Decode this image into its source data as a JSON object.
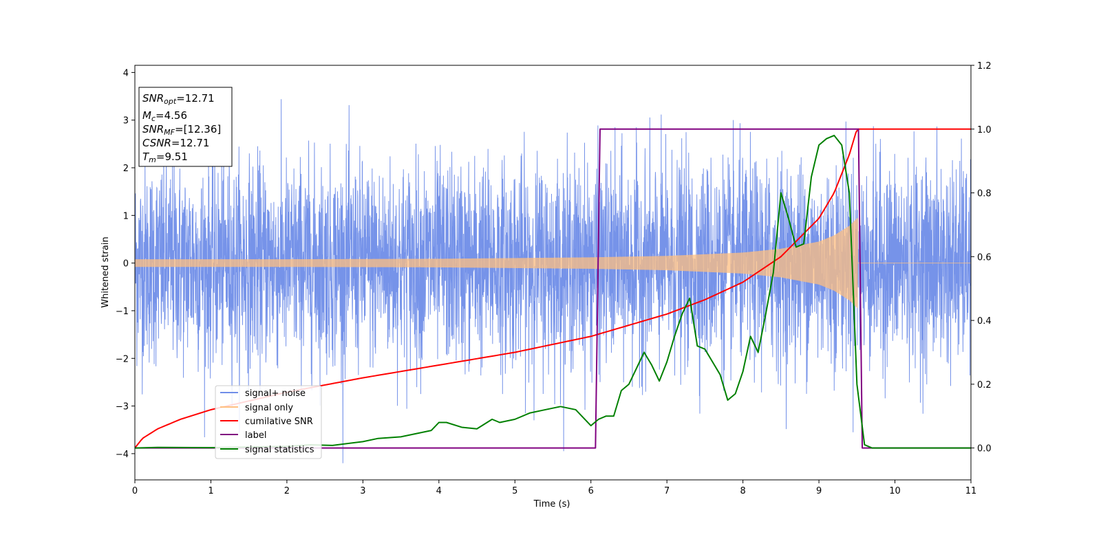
{
  "chart_data": {
    "type": "line",
    "xlabel": "Time (s)",
    "ylabel": "Whitened strain",
    "xlim": [
      0,
      11
    ],
    "ylim_left": [
      -4.55,
      4.15
    ],
    "ylim_right": [
      -0.1,
      1.2
    ],
    "xticks": [
      0,
      1,
      2,
      3,
      4,
      5,
      6,
      7,
      8,
      9,
      10,
      11
    ],
    "yticks_left": [
      -4,
      -3,
      -2,
      -1,
      0,
      1,
      2,
      3,
      4
    ],
    "yticks_right": [
      0.0,
      0.2,
      0.4,
      0.6,
      0.8,
      1.0,
      1.2
    ],
    "grid": false,
    "legend_position": "lower-left",
    "info_box": {
      "snr_opt": {
        "base": "SNR",
        "sub": "opt",
        "value": "=12.71"
      },
      "mc": {
        "base": "M",
        "sub": "c",
        "value": "=4.56"
      },
      "snr_mf": {
        "base": "SNR",
        "sub": "MF",
        "value": "=[12.36]"
      },
      "csnr": {
        "base": "CSNR",
        "value": "=12.71"
      },
      "tm": {
        "base": "T",
        "sub": "m",
        "value": "=9.51"
      }
    },
    "series": [
      {
        "name": "signal+ noise",
        "color": "#6f8de8",
        "axis": "left",
        "noise_std": 1.05,
        "t_start": 0,
        "t_end": 11
      },
      {
        "name": "signal only",
        "color": "#ffbf80",
        "axis": "left",
        "amplitude_envelope": {
          "t": [
            0,
            2,
            4,
            6,
            7,
            8,
            8.5,
            9,
            9.2,
            9.4,
            9.51
          ],
          "amp": [
            0.08,
            0.08,
            0.09,
            0.12,
            0.15,
            0.22,
            0.3,
            0.45,
            0.58,
            0.78,
            0.95
          ]
        },
        "t_end": 9.51
      },
      {
        "name": "cumilative SNR",
        "color": "#ff0000",
        "axis": "right",
        "x": [
          0,
          0.1,
          0.3,
          0.6,
          1,
          2,
          3,
          4,
          5,
          6,
          6.5,
          7,
          7.5,
          8,
          8.5,
          9,
          9.2,
          9.4,
          9.5,
          11
        ],
        "y": [
          0.0,
          0.03,
          0.06,
          0.09,
          0.12,
          0.175,
          0.22,
          0.26,
          0.3,
          0.35,
          0.385,
          0.42,
          0.465,
          0.52,
          0.6,
          0.72,
          0.8,
          0.92,
          1.0,
          1.0
        ]
      },
      {
        "name": "label",
        "color": "#800080",
        "axis": "right",
        "x": [
          0,
          6.06,
          6.12,
          9.52,
          9.57,
          11
        ],
        "y": [
          0,
          0,
          1,
          1,
          0,
          0
        ]
      },
      {
        "name": "signal statistics",
        "color": "#008000",
        "axis": "right",
        "x": [
          0,
          0.3,
          1,
          2,
          2.3,
          2.6,
          3,
          3.2,
          3.5,
          3.7,
          3.9,
          4,
          4.1,
          4.3,
          4.5,
          4.7,
          4.8,
          5,
          5.2,
          5.4,
          5.6,
          5.8,
          6,
          6.1,
          6.2,
          6.3,
          6.4,
          6.5,
          6.6,
          6.7,
          6.8,
          6.9,
          7,
          7.1,
          7.2,
          7.3,
          7.4,
          7.5,
          7.6,
          7.7,
          7.8,
          7.9,
          8,
          8.1,
          8.2,
          8.3,
          8.4,
          8.5,
          8.6,
          8.7,
          8.8,
          8.9,
          9,
          9.1,
          9.2,
          9.3,
          9.4,
          9.5,
          9.6,
          9.7,
          9.8,
          11
        ],
        "y": [
          0.0,
          0.002,
          0.001,
          0.005,
          0.01,
          0.008,
          0.02,
          0.03,
          0.035,
          0.045,
          0.055,
          0.08,
          0.08,
          0.065,
          0.06,
          0.09,
          0.08,
          0.09,
          0.11,
          0.12,
          0.13,
          0.12,
          0.07,
          0.09,
          0.1,
          0.1,
          0.18,
          0.2,
          0.25,
          0.3,
          0.26,
          0.21,
          0.27,
          0.35,
          0.42,
          0.47,
          0.32,
          0.31,
          0.27,
          0.23,
          0.15,
          0.17,
          0.24,
          0.35,
          0.3,
          0.42,
          0.55,
          0.8,
          0.72,
          0.63,
          0.64,
          0.85,
          0.95,
          0.97,
          0.98,
          0.95,
          0.8,
          0.2,
          0.01,
          0.0,
          0.0,
          0.0
        ]
      }
    ]
  }
}
